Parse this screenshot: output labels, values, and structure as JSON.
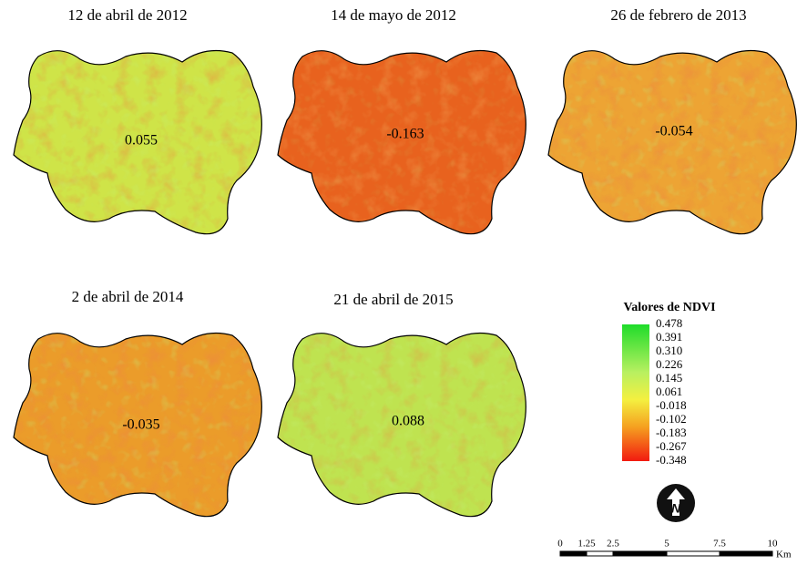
{
  "panels": [
    {
      "title": "12 de abril de 2012",
      "value": "0.055"
    },
    {
      "title": "14 de mayo de 2012",
      "value": "-0.163"
    },
    {
      "title": "26 de febrero de 2013",
      "value": "-0.054"
    },
    {
      "title": "2 de abril de 2014",
      "value": "-0.035"
    },
    {
      "title": "21 de abril de 2015",
      "value": "0.088"
    }
  ],
  "legend": {
    "title": "Valores de NDVI",
    "labels": [
      "0.478",
      "0.391",
      "0.310",
      "0.226",
      "0.145",
      "0.061",
      "-0.018",
      "-0.102",
      "-0.183",
      "-0.267",
      "-0.348"
    ]
  },
  "scale_bar": {
    "labels": [
      "0",
      "1.25",
      "2.5",
      "5",
      "7.5",
      "10"
    ],
    "unit": "Km"
  }
}
